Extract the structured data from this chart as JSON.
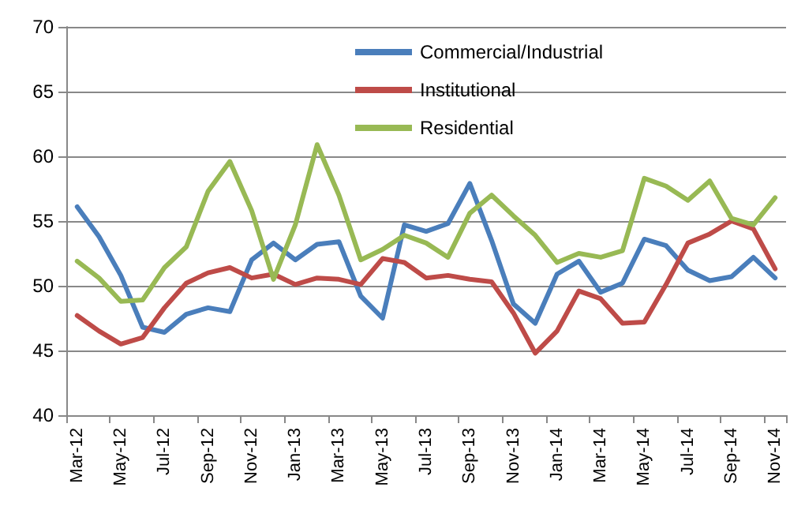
{
  "chart_data": {
    "type": "line",
    "categories": [
      "Mar-12",
      null,
      "May-12",
      null,
      "Jul-12",
      null,
      "Sep-12",
      null,
      "Nov-12",
      null,
      "Jan-13",
      null,
      "Mar-13",
      null,
      "May-13",
      null,
      "Jul-13",
      null,
      "Sep-13",
      null,
      "Nov-13",
      null,
      "Jan-14",
      null,
      "Mar-14",
      null,
      "May-14",
      null,
      "Jul-14",
      null,
      "Sep-14",
      null,
      "Nov-14"
    ],
    "series": [
      {
        "name": "Commercial/Industrial",
        "color": "#4a7ebb",
        "values": [
          56.1,
          53.8,
          50.8,
          46.8,
          46.4,
          47.8,
          48.3,
          48.0,
          52.0,
          53.3,
          52.0,
          53.2,
          53.4,
          49.2,
          47.5,
          54.7,
          54.2,
          54.8,
          57.9,
          53.5,
          48.6,
          47.1,
          50.9,
          51.9,
          49.5,
          50.2,
          53.6,
          53.1,
          51.2,
          50.4,
          50.7,
          52.2,
          50.6
        ]
      },
      {
        "name": "Institutional",
        "color": "#be4b48",
        "values": [
          47.7,
          46.5,
          45.5,
          46.0,
          48.3,
          50.2,
          51.0,
          51.4,
          50.6,
          50.9,
          50.1,
          50.6,
          50.5,
          50.1,
          52.1,
          51.8,
          50.6,
          50.8,
          50.5,
          50.3,
          47.9,
          44.8,
          46.5,
          49.6,
          49.0,
          47.1,
          47.2,
          50.1,
          53.3,
          54.0,
          55.0,
          54.4,
          51.3
        ]
      },
      {
        "name": "Residential",
        "color": "#98b954",
        "values": [
          51.9,
          50.6,
          48.8,
          48.9,
          51.4,
          53.0,
          57.3,
          59.6,
          55.8,
          50.5,
          54.7,
          60.9,
          57.0,
          52.0,
          52.8,
          53.9,
          53.3,
          52.2,
          55.6,
          57.0,
          55.4,
          53.9,
          51.8,
          52.5,
          52.2,
          52.7,
          58.3,
          57.7,
          56.6,
          58.1,
          55.2,
          54.7,
          56.8
        ]
      }
    ],
    "ylim": [
      40,
      70
    ],
    "yticks": [
      40,
      45,
      50,
      55,
      60,
      65,
      70
    ],
    "grid": "y",
    "legend": "top",
    "marker": "none",
    "line_style": "solid"
  }
}
